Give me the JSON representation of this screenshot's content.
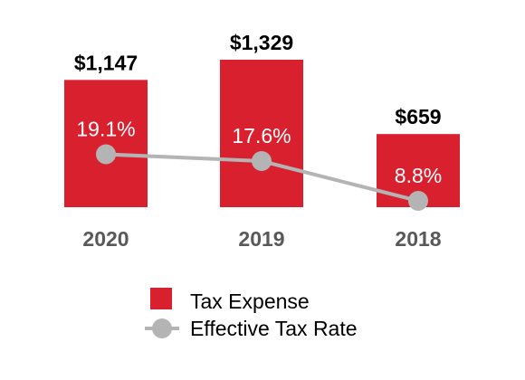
{
  "chart_data": {
    "type": "bar",
    "categories": [
      "2020",
      "2019",
      "2018"
    ],
    "series": [
      {
        "name": "Tax Expense",
        "kind": "bar",
        "values": [
          1147,
          1329,
          659
        ],
        "labels": [
          "$1,147",
          "$1,329",
          "$659"
        ],
        "color": "#d9202f"
      },
      {
        "name": "Effective Tax Rate",
        "kind": "line",
        "values": [
          19.1,
          17.6,
          8.8
        ],
        "labels": [
          "19.1%",
          "17.6%",
          "8.8%"
        ],
        "color": "#b4b4b4"
      }
    ],
    "legend_position": "bottom",
    "grid": false
  }
}
